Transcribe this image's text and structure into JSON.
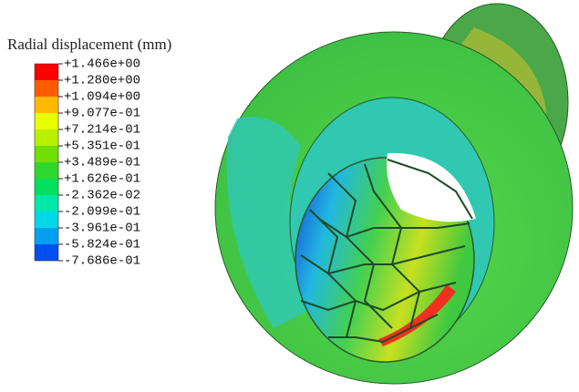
{
  "legend": {
    "title": "Radial displacement (mm)",
    "labels": [
      "+1.466e+00",
      "+1.280e+00",
      "+1.094e+00",
      "+9.077e-01",
      "+7.214e-01",
      "+5.351e-01",
      "+3.489e-01",
      "+1.626e-01",
      "-2.362e-02",
      "-2.099e-01",
      "-3.961e-01",
      "-5.824e-01",
      "-7.686e-01"
    ],
    "colors": [
      "#ff0000",
      "#ff5c00",
      "#ffb900",
      "#e8ff00",
      "#b8f000",
      "#6fe000",
      "#2ed82e",
      "#00e05a",
      "#00e8a8",
      "#00d8e8",
      "#00a0f0",
      "#0050f0",
      "#0000ff"
    ]
  }
}
